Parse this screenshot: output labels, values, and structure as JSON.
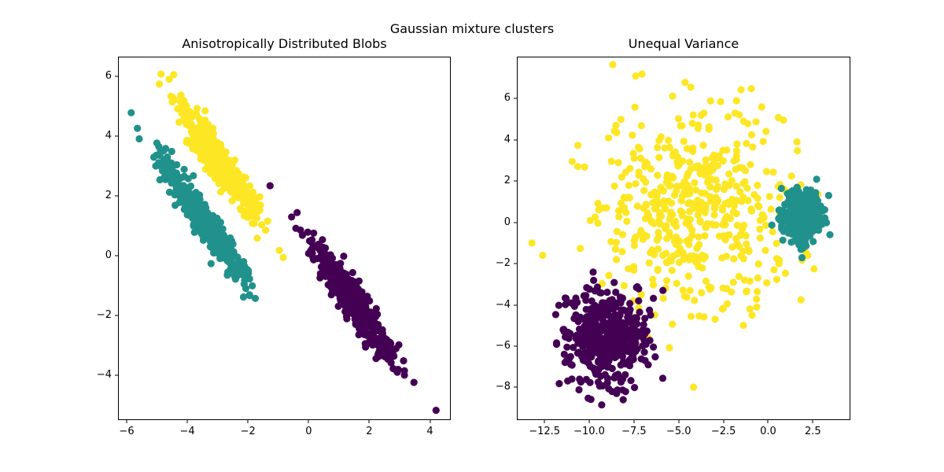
{
  "figure": {
    "suptitle": "Gaussian mixture clusters",
    "background": "#ffffff"
  },
  "palette": {
    "viridis_purple": "#440154",
    "viridis_teal": "#21918c",
    "viridis_yellow": "#fde725",
    "axis_color": "#000000"
  },
  "chart_data": [
    {
      "id": "aniso",
      "type": "scatter",
      "title": "Anisotropically Distributed Blobs",
      "xlabel": "",
      "ylabel": "",
      "grid": false,
      "legend": null,
      "xlim": [
        -6.26,
        4.66
      ],
      "ylim": [
        -5.48,
        6.63
      ],
      "xticks": [
        {
          "v": -6,
          "label": "−6"
        },
        {
          "v": -4,
          "label": "−4"
        },
        {
          "v": -2,
          "label": "−2"
        },
        {
          "v": 0,
          "label": "0"
        },
        {
          "v": 2,
          "label": "2"
        },
        {
          "v": 4,
          "label": "4"
        }
      ],
      "yticks": [
        {
          "v": 6,
          "label": "6"
        },
        {
          "v": 4,
          "label": "4"
        },
        {
          "v": 2,
          "label": "2"
        },
        {
          "v": 0,
          "label": "0"
        },
        {
          "v": -2,
          "label": "−2"
        },
        {
          "v": -4,
          "label": "−4"
        }
      ],
      "marker_radius_px": 4.6,
      "clusters": [
        {
          "name": "purple-anisotropic-blob",
          "color": "#440154",
          "n": 500,
          "seed": 1101,
          "center": [
            1.45,
            -1.55
          ],
          "shape": {
            "type": "aniso",
            "dir": [
              0.559,
              -0.829
            ],
            "s1": 1.2,
            "s2": 0.19
          },
          "outliers": [
            [
              4.2,
              -5.18
            ]
          ]
        },
        {
          "name": "teal-anisotropic-blob",
          "color": "#21918c",
          "n": 500,
          "seed": 2202,
          "center": [
            -3.5,
            1.2
          ],
          "shape": {
            "type": "aniso",
            "dir": [
              0.559,
              -0.829
            ],
            "s1": 1.25,
            "s2": 0.18
          },
          "outliers": [
            [
              -5.85,
              4.78
            ]
          ]
        },
        {
          "name": "yellow-anisotropic-blob",
          "color": "#fde725",
          "n": 500,
          "seed": 3303,
          "center": [
            -2.95,
            3.1
          ],
          "shape": {
            "type": "aniso",
            "dir": [
              0.559,
              -0.829
            ],
            "s1": 1.1,
            "s2": 0.2
          },
          "outliers": [
            [
              -4.6,
              5.9
            ],
            [
              -4.45,
              6.05
            ]
          ]
        }
      ]
    },
    {
      "id": "unequal-variance",
      "type": "scatter",
      "title": "Unequal Variance",
      "xlabel": "",
      "ylabel": "",
      "grid": false,
      "legend": null,
      "xlim": [
        -14.0,
        4.55
      ],
      "ylim": [
        -9.55,
        8.0
      ],
      "xticks": [
        {
          "v": -12.5,
          "label": "−12.5"
        },
        {
          "v": -10,
          "label": "−10.0"
        },
        {
          "v": -7.5,
          "label": "−7.5"
        },
        {
          "v": -5,
          "label": "−5.0"
        },
        {
          "v": -2.5,
          "label": "−2.5"
        },
        {
          "v": 0,
          "label": "0.0"
        },
        {
          "v": 2.5,
          "label": "2.5"
        }
      ],
      "yticks": [
        {
          "v": 6,
          "label": "6"
        },
        {
          "v": 4,
          "label": "4"
        },
        {
          "v": 2,
          "label": "2"
        },
        {
          "v": 0,
          "label": "0"
        },
        {
          "v": -2,
          "label": "−2"
        },
        {
          "v": -4,
          "label": "−4"
        },
        {
          "v": -6,
          "label": "−6"
        },
        {
          "v": -8,
          "label": "−8"
        }
      ],
      "marker_radius_px": 4.6,
      "clusters": [
        {
          "name": "yellow-large-variance-blob",
          "color": "#fde725",
          "n": 500,
          "seed": 4404,
          "center": [
            -4.2,
            0.6
          ],
          "shape": {
            "type": "iso",
            "std": 2.6
          },
          "outliers": [
            [
              -7.4,
              7.1
            ],
            [
              -7.05,
              7.2
            ],
            [
              -13.2,
              -1.0
            ],
            [
              -12.6,
              -1.6
            ]
          ]
        },
        {
          "name": "purple-medium-variance-blob",
          "color": "#440154",
          "n": 500,
          "seed": 5505,
          "center": [
            -9.0,
            -5.6
          ],
          "shape": {
            "type": "iso",
            "std": 1.05
          },
          "outliers": [
            [
              -9.3,
              -8.85
            ],
            [
              -8.1,
              -8.6
            ]
          ]
        },
        {
          "name": "teal-small-variance-blob",
          "color": "#21918c",
          "n": 500,
          "seed": 6606,
          "center": [
            1.9,
            0.4
          ],
          "shape": {
            "type": "iso",
            "std": 0.55
          },
          "outliers": [
            [
              3.45,
              -0.6
            ]
          ]
        }
      ]
    }
  ]
}
